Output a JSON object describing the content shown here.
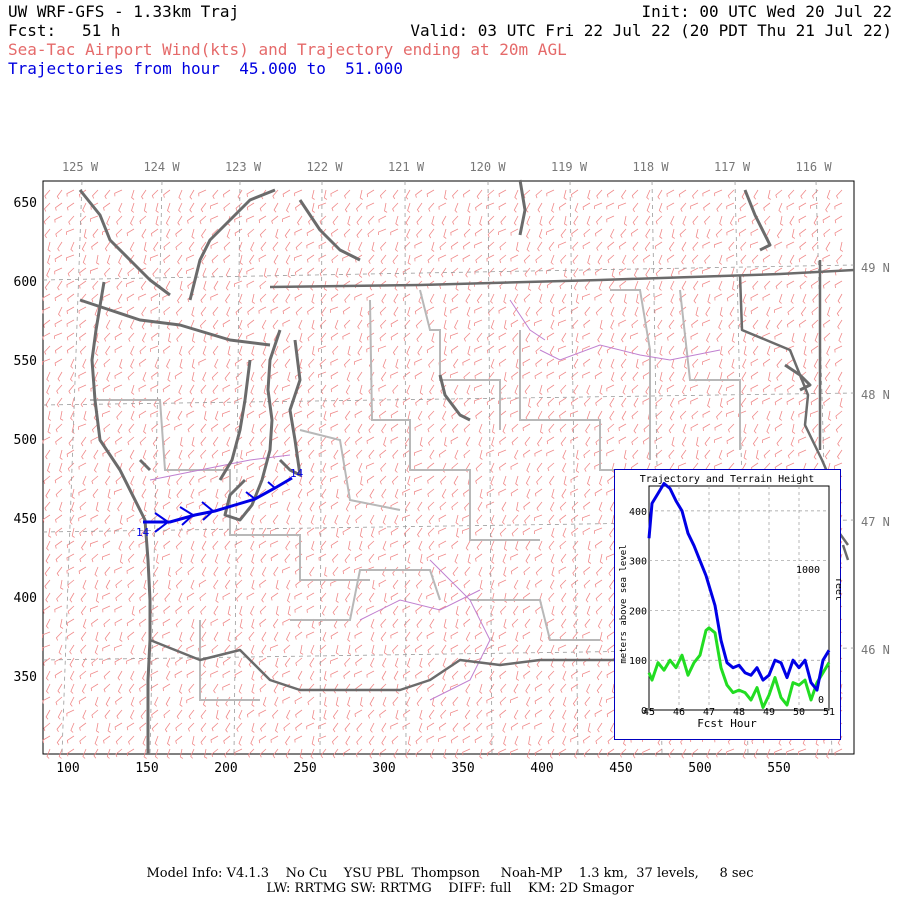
{
  "header": {
    "title": "UW WRF-GFS - 1.33km Traj",
    "init": "Init: 00 UTC Wed 20 Jul 22",
    "fcst_label": "Fcst:",
    "fcst_value": "51 h",
    "valid": "Valid: 03 UTC Fri 22 Jul 22 (20 PDT Thu 21 Jul 22)",
    "subtitle": "Sea-Tac Airport Wind(kts) and Trajectory ending at 20m AGL",
    "traj_range": "Trajectories from hour  45.000 to  51.000"
  },
  "colors": {
    "title": "#000000",
    "subtitle": "#e56a6a",
    "traj_text": "#0000e0",
    "trajectory": "#0000e6",
    "barbs": "#f08a8a",
    "coast": "#6b6b6b",
    "state_lines": "#b0b0b0",
    "river": "#c080d0",
    "terrain_line": "#22dd22"
  },
  "map": {
    "top_lon_labels": [
      "125 W",
      "124 W",
      "123 W",
      "122 W",
      "121 W",
      "120 W",
      "119 W",
      "118 W",
      "117 W",
      "116 W"
    ],
    "right_lat_labels": [
      "49 N",
      "48 N",
      "47 N",
      "46 N"
    ],
    "x_ticks": [
      "100",
      "150",
      "200",
      "250",
      "300",
      "350",
      "400",
      "450",
      "500",
      "550"
    ],
    "y_ticks": [
      "650",
      "600",
      "550",
      "500",
      "450",
      "400",
      "350"
    ],
    "traj_start_label": "14",
    "traj_end_label": "14"
  },
  "inset": {
    "title": "Trajectory and Terrain Height",
    "ylabel_left": "meters above sea level",
    "ylabel_right": "feet",
    "xlabel": "Fcst Hour",
    "x_ticks": [
      "45",
      "46",
      "47",
      "48",
      "49",
      "50",
      "51"
    ],
    "y_ticks": [
      "0",
      "100",
      "200",
      "300",
      "400"
    ],
    "right_tick": "1000",
    "right_zero": "0"
  },
  "chart_data": {
    "type": "line",
    "title": "Trajectory and Terrain Height",
    "xlabel": "Fcst Hour",
    "ylabel": "meters above sea level",
    "xlim": [
      45,
      51
    ],
    "ylim": [
      0,
      450
    ],
    "series": [
      {
        "name": "trajectory",
        "x": [
          45.0,
          45.1,
          45.3,
          45.5,
          45.7,
          45.9,
          46.1,
          46.3,
          46.5,
          46.7,
          46.9,
          47.0,
          47.2,
          47.4,
          47.6,
          47.8,
          48.0,
          48.2,
          48.4,
          48.6,
          48.8,
          49.0,
          49.2,
          49.4,
          49.6,
          49.8,
          50.0,
          50.2,
          50.4,
          50.6,
          50.8,
          51.0
        ],
        "values": [
          345,
          415,
          435,
          455,
          445,
          420,
          400,
          355,
          330,
          300,
          270,
          250,
          210,
          140,
          95,
          85,
          90,
          75,
          70,
          85,
          60,
          70,
          100,
          95,
          65,
          100,
          85,
          100,
          55,
          40,
          100,
          120
        ]
      },
      {
        "name": "terrain",
        "x": [
          45.0,
          45.1,
          45.3,
          45.5,
          45.7,
          45.9,
          46.1,
          46.3,
          46.5,
          46.7,
          46.9,
          47.0,
          47.2,
          47.4,
          47.6,
          47.8,
          48.0,
          48.2,
          48.4,
          48.6,
          48.8,
          49.0,
          49.2,
          49.4,
          49.6,
          49.8,
          50.0,
          50.2,
          50.4,
          50.6,
          50.8,
          51.0
        ],
        "values": [
          75,
          60,
          95,
          80,
          100,
          85,
          110,
          70,
          95,
          110,
          160,
          165,
          155,
          85,
          50,
          35,
          40,
          35,
          20,
          45,
          5,
          30,
          65,
          25,
          10,
          55,
          50,
          60,
          20,
          55,
          75,
          95
        ]
      }
    ]
  },
  "footer": {
    "line1": "Model Info: V4.1.3    No Cu    YSU PBL  Thompson     Noah-MP    1.3 km,  37 levels,     8 sec",
    "line2": "LW: RRTMG SW: RRTMG    DIFF: full    KM: 2D Smagor"
  }
}
